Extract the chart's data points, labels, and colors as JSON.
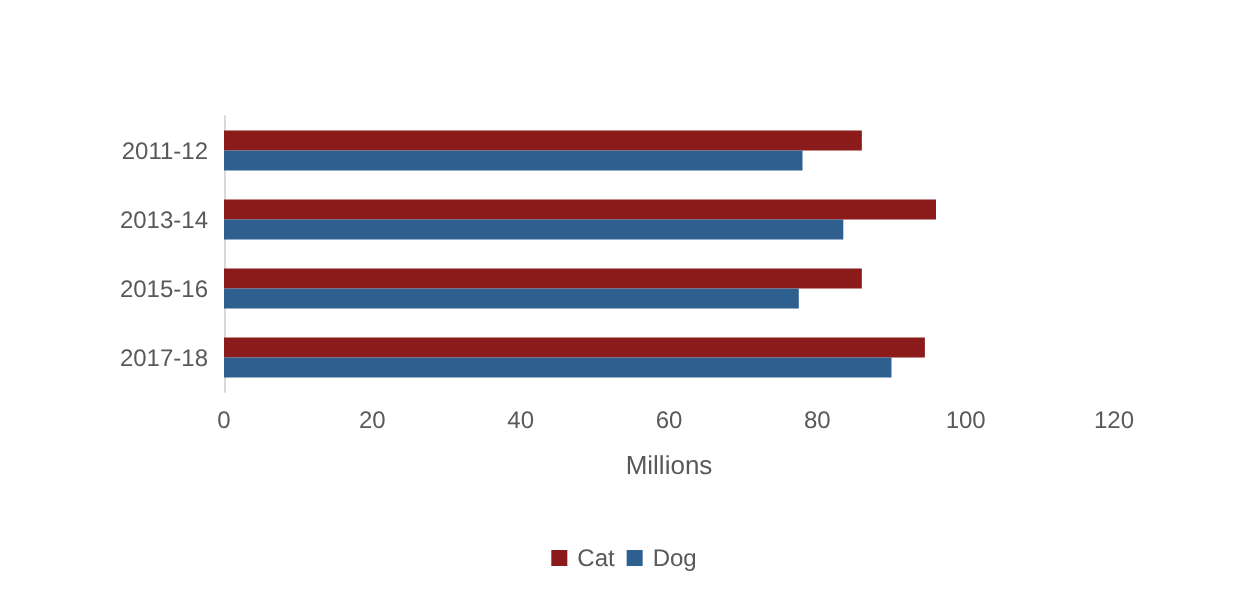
{
  "chart_data": {
    "type": "bar",
    "orientation": "horizontal",
    "xlabel": "Millions",
    "categories": [
      "2011-12",
      "2013-14",
      "2015-16",
      "2017-18"
    ],
    "series": [
      {
        "name": "Cat",
        "color": "#8b1a1a",
        "values": [
          86,
          96,
          86,
          94.5
        ]
      },
      {
        "name": "Dog",
        "color": "#2e5f8e",
        "values": [
          78,
          83.5,
          77.5,
          90
        ]
      }
    ],
    "xlim": [
      0,
      120
    ],
    "xticks": [
      0,
      20,
      40,
      60,
      80,
      100,
      120
    ],
    "grid": false,
    "legend": "bottom"
  }
}
